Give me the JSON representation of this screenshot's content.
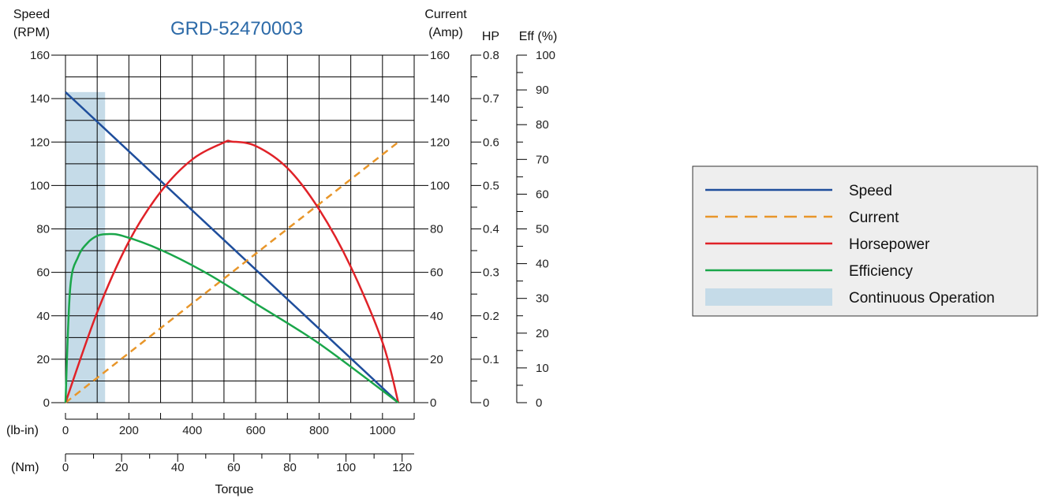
{
  "colors": {
    "speed": "#1f4e9c",
    "current": "#e8962a",
    "horsepower": "#e02228",
    "efficiency": "#1aa64a",
    "continuous": "#c5dbe8",
    "title": "#2c6aa8",
    "legend_bg": "#eeeeee"
  },
  "chart_data": {
    "type": "line",
    "title": "GRD-52470003",
    "axes": {
      "speed": {
        "label_line1": "Speed",
        "label_line2": "(RPM)",
        "range": [
          0,
          160
        ],
        "ticks": [
          "0",
          "20",
          "40",
          "60",
          "80",
          "100",
          "120",
          "140",
          "160"
        ]
      },
      "current": {
        "label_line1": "Current",
        "label_line2": "(Amp)",
        "range": [
          0,
          160
        ],
        "ticks": [
          "0",
          "20",
          "40",
          "60",
          "80",
          "100",
          "120",
          "140",
          "160"
        ]
      },
      "hp": {
        "label": "HP",
        "range": [
          0,
          0.8
        ],
        "ticks": [
          "0",
          "0.1",
          "0.2",
          "0.3",
          "0.4",
          "0.5",
          "0.6",
          "0.7",
          "0.8"
        ]
      },
      "eff": {
        "label": "Eff (%)",
        "range": [
          0,
          100
        ],
        "ticks": [
          "0",
          "10",
          "20",
          "30",
          "40",
          "50",
          "60",
          "70",
          "80",
          "90",
          "100"
        ]
      },
      "torque_lbin": {
        "unit": "(lb-in)",
        "range": [
          0,
          1100
        ],
        "ticks": [
          "0",
          "200",
          "400",
          "600",
          "800",
          "1000"
        ]
      },
      "torque_nm": {
        "unit": "(Nm)",
        "range": [
          0,
          124.3
        ],
        "ticks": [
          "0",
          "20",
          "40",
          "60",
          "80",
          "100",
          "120"
        ]
      },
      "xlabel": "Torque"
    },
    "series": [
      {
        "name": "Speed",
        "axis": "speed",
        "x": [
          0,
          1050
        ],
        "y": [
          143,
          0
        ]
      },
      {
        "name": "Current",
        "axis": "current",
        "x": [
          0,
          1050
        ],
        "y": [
          0,
          120
        ]
      },
      {
        "name": "Horsepower",
        "axis": "hp",
        "x": [
          0,
          100,
          200,
          300,
          400,
          500,
          525,
          600,
          700,
          800,
          900,
          1000,
          1050
        ],
        "y": [
          0,
          0.208,
          0.371,
          0.485,
          0.56,
          0.599,
          0.601,
          0.591,
          0.54,
          0.445,
          0.313,
          0.139,
          0
        ]
      },
      {
        "name": "Efficiency",
        "axis": "eff",
        "x": [
          0,
          15,
          40,
          70,
          100,
          130,
          180,
          300,
          450,
          600,
          800,
          1050
        ],
        "y": [
          0,
          33,
          42,
          46,
          48,
          48.5,
          48,
          44,
          37,
          28.5,
          17,
          0
        ]
      }
    ],
    "continuous_operation": {
      "x_range": [
        0,
        125
      ]
    },
    "legend": {
      "position": "right",
      "entries": [
        "Speed",
        "Current",
        "Horsepower",
        "Efficiency",
        "Continuous Operation"
      ]
    }
  }
}
